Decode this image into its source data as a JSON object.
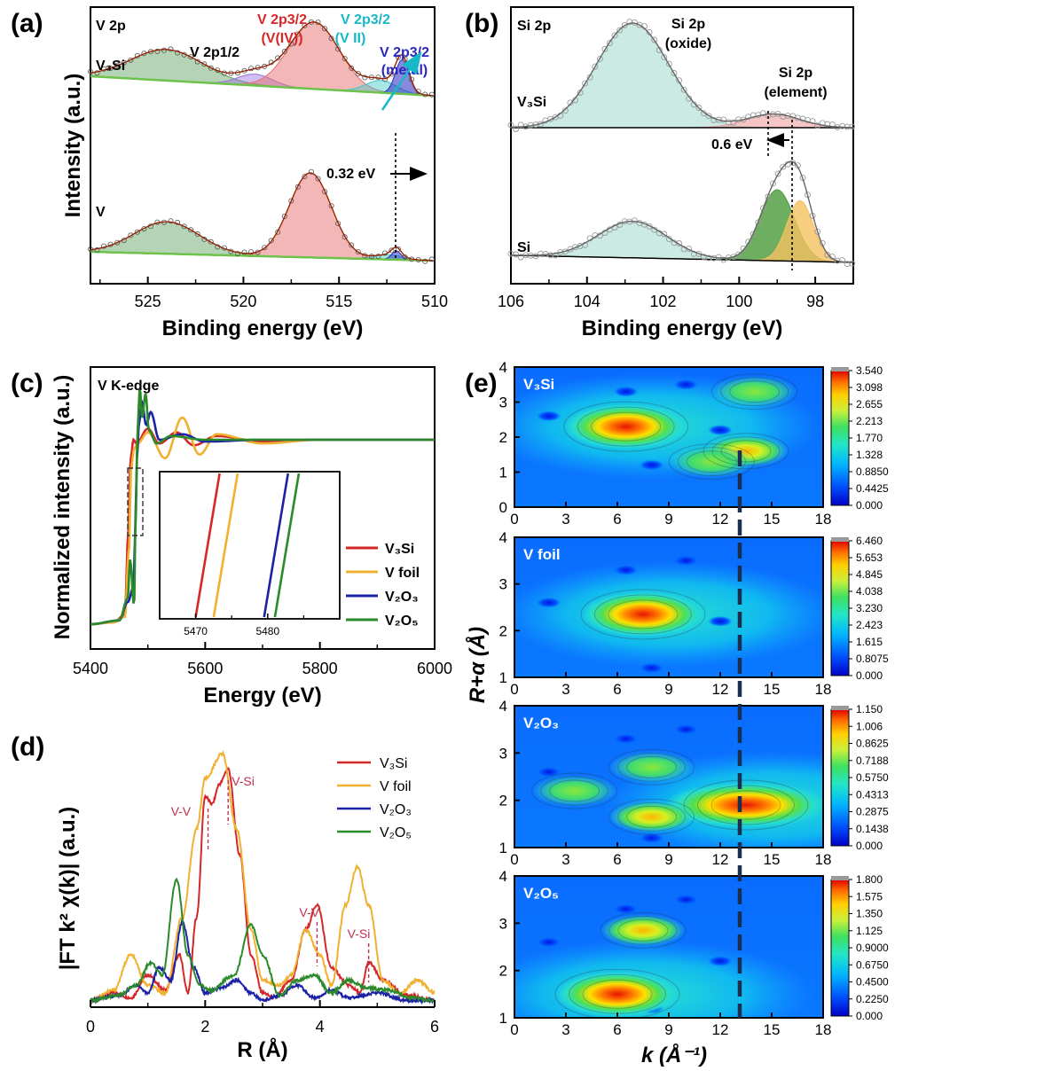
{
  "panels": {
    "a": {
      "label": "(a)",
      "title": "V 2p",
      "xlabel": "Binding energy (eV)",
      "ylabel": "Intensity (a.u.)",
      "sample_top": "V₃Si",
      "sample_bottom": "V",
      "peak_labels": {
        "v2p12": "V 2p1/2",
        "v4": "V 2p3/2",
        "v4_state": "(V(IV))",
        "v2": "V 2p3/2",
        "v2_state": "(V II)",
        "metal": "V 2p3/2",
        "metal_state": "(metal)"
      },
      "shift_label": "0.32 eV",
      "xticks": [
        "525",
        "520",
        "515",
        "510"
      ]
    },
    "b": {
      "label": "(b)",
      "title": "Si 2p",
      "xlabel": "Binding energy (eV)",
      "sample_top": "V₃Si",
      "sample_bottom": "Si",
      "oxide_label": "Si 2p",
      "oxide_state": "(oxide)",
      "element_label": "Si 2p",
      "element_state": "(element)",
      "shift_label": "0.6 eV",
      "xticks": [
        "106",
        "104",
        "102",
        "100",
        "98"
      ]
    },
    "c": {
      "label": "(c)",
      "title": "V K-edge",
      "xlabel": "Energy (eV)",
      "ylabel": "Normalized intensity (a.u.)",
      "xticks": [
        "5400",
        "5600",
        "5800",
        "6000"
      ],
      "inset_xticks": [
        "5470",
        "5480"
      ],
      "legend": [
        "V₃Si",
        "V foil",
        "V₂O₃",
        "V₂O₅"
      ]
    },
    "d": {
      "label": "(d)",
      "xlabel": "R (Å)",
      "ylabel": "|FT k² χ(k)| (a.u.)",
      "xticks": [
        "0",
        "2",
        "4",
        "6"
      ],
      "legend": [
        "V₃Si",
        "V foil",
        "V₂O₃",
        "V₂O₅"
      ],
      "annotations": [
        "V-V",
        "V-Si",
        "V-V",
        "V-Si"
      ]
    },
    "e": {
      "label": "(e)",
      "xlabel": "k (Å⁻¹)",
      "ylabel": "R+α (Å)",
      "xticks": [
        "0",
        "3",
        "6",
        "9",
        "12",
        "15",
        "18"
      ],
      "subplots": [
        {
          "name": "V₃Si",
          "yticks": [
            "0",
            "1",
            "2",
            "3",
            "4"
          ],
          "colorbar": [
            "3.540",
            "3.098",
            "2.655",
            "2.213",
            "1.770",
            "1.328",
            "0.8850",
            "0.4425",
            "0.000"
          ]
        },
        {
          "name": "V foil",
          "yticks": [
            "1",
            "2",
            "3",
            "4"
          ],
          "colorbar": [
            "6.460",
            "5.653",
            "4.845",
            "4.038",
            "3.230",
            "2.423",
            "1.615",
            "0.8075",
            "0.000"
          ]
        },
        {
          "name": "V₂O₃",
          "yticks": [
            "1",
            "2",
            "3",
            "4"
          ],
          "colorbar": [
            "1.150",
            "1.006",
            "0.8625",
            "0.7188",
            "0.5750",
            "0.4313",
            "0.2875",
            "0.1438",
            "0.000"
          ]
        },
        {
          "name": "V₂O₅",
          "yticks": [
            "1",
            "2",
            "3",
            "4"
          ],
          "colorbar": [
            "1.800",
            "1.575",
            "1.350",
            "1.125",
            "0.9000",
            "0.6750",
            "0.4500",
            "0.2250",
            "0.000"
          ]
        }
      ]
    }
  },
  "chart_data": [
    {
      "type": "line",
      "panel": "a",
      "title": "V 2p",
      "xlabel": "Binding energy (eV)",
      "ylabel": "Intensity (a.u.)",
      "xlim": [
        528,
        510
      ],
      "reversed_x": true,
      "y_units": "arbitrary (normalized)",
      "series": [
        {
          "name": "V₃Si",
          "x": [
            528,
            526,
            524,
            522,
            520,
            519,
            518,
            517,
            516.3,
            515,
            514,
            513,
            512.5,
            511.8,
            511,
            510
          ],
          "y": [
            0.18,
            0.38,
            0.55,
            0.4,
            0.3,
            0.33,
            0.56,
            0.92,
            1.0,
            0.7,
            0.35,
            0.25,
            0.3,
            0.52,
            0.15,
            0.02
          ]
        },
        {
          "name": "V",
          "x": [
            528,
            526,
            524,
            522,
            520,
            519,
            518,
            517,
            516.5,
            515,
            514,
            513,
            512,
            511,
            510
          ],
          "y": [
            0.1,
            0.35,
            0.5,
            0.32,
            0.18,
            0.15,
            0.38,
            0.88,
            1.0,
            0.6,
            0.2,
            0.06,
            0.1,
            0.04,
            0.02
          ]
        }
      ],
      "peaks": {
        "V2p1/2": 524.0,
        "V(IV)": 516.3,
        "V(II)": 512.8,
        "metal_V3Si": 511.7,
        "metal_V": 512.0
      },
      "shift_eV": 0.32
    },
    {
      "type": "line",
      "panel": "b",
      "title": "Si 2p",
      "xlabel": "Binding energy (eV)",
      "xlim": [
        106,
        97
      ],
      "reversed_x": true,
      "series": [
        {
          "name": "V₃Si",
          "x": [
            106,
            105,
            104,
            103.5,
            102.8,
            102,
            101,
            100,
            99.2,
            98.5,
            97
          ],
          "y": [
            0.02,
            0.12,
            0.55,
            0.85,
            1.0,
            0.75,
            0.22,
            0.08,
            0.15,
            0.06,
            0.03
          ]
        },
        {
          "name": "Si",
          "x": [
            106,
            105,
            104,
            103,
            102.5,
            102,
            101,
            100,
            99.3,
            98.7,
            98.5,
            98,
            97.5,
            97
          ],
          "y": [
            0.02,
            0.06,
            0.28,
            0.42,
            0.38,
            0.25,
            0.08,
            0.1,
            0.55,
            1.0,
            0.95,
            0.48,
            0.12,
            0.03
          ]
        }
      ],
      "peaks": {
        "oxide": 102.8,
        "element_V3Si": 99.2,
        "element_Si": 98.6
      },
      "shift_eV": 0.6
    },
    {
      "type": "line",
      "panel": "c",
      "title": "V K-edge",
      "xlabel": "Energy (eV)",
      "ylabel": "Normalized intensity (a.u.)",
      "xlim": [
        5400,
        6000
      ],
      "series": [
        {
          "name": "V₃Si",
          "x": [
            5400,
            5440,
            5460,
            5466,
            5470,
            5475,
            5480,
            5500,
            5520,
            5550,
            5580,
            5620,
            5700,
            5800,
            5900,
            6000
          ],
          "y": [
            0.0,
            0.01,
            0.05,
            0.5,
            0.9,
            1.0,
            0.98,
            1.06,
            0.98,
            1.04,
            0.97,
            1.02,
            0.99,
            1.0,
            1.0,
            1.0
          ]
        },
        {
          "name": "V foil",
          "x": [
            5400,
            5440,
            5460,
            5467,
            5471,
            5476,
            5482,
            5500,
            5530,
            5560,
            5590,
            5620,
            5700,
            5800,
            5900,
            6000
          ],
          "y": [
            0.0,
            0.01,
            0.04,
            0.4,
            0.85,
            0.95,
            0.98,
            1.04,
            0.9,
            1.12,
            0.92,
            1.03,
            0.98,
            1.0,
            1.0,
            1.0
          ]
        },
        {
          "name": "V₂O₃",
          "x": [
            5400,
            5450,
            5465,
            5475,
            5478,
            5481,
            5485,
            5490,
            5497,
            5505,
            5520,
            5560,
            5600,
            5700,
            5800,
            6000
          ],
          "y": [
            0.0,
            0.02,
            0.12,
            0.2,
            0.5,
            0.9,
            1.1,
            1.2,
            1.08,
            1.15,
            1.0,
            1.03,
            0.99,
            1.0,
            1.0,
            1.0
          ]
        },
        {
          "name": "V₂O₅",
          "x": [
            5400,
            5450,
            5465,
            5469,
            5476,
            5479,
            5482,
            5486,
            5490,
            5496,
            5502,
            5515,
            5540,
            5600,
            5700,
            6000
          ],
          "y": [
            0.0,
            0.02,
            0.14,
            0.35,
            0.1,
            0.6,
            1.05,
            1.28,
            1.12,
            1.25,
            1.05,
            0.98,
            1.02,
            1.0,
            1.0,
            1.0
          ]
        }
      ],
      "inset": {
        "xlim": [
          5465,
          5490
        ],
        "edge_crossings": {
          "V₃Si": 5470,
          "V foil": 5472.5,
          "V₂O₃": 5479.5,
          "V₂O₅": 5481
        }
      }
    },
    {
      "type": "line",
      "panel": "d",
      "xlabel": "R (Å)",
      "ylabel": "|FT k² χ(k)| (a.u.)",
      "xlim": [
        0,
        6
      ],
      "series": [
        {
          "name": "V₃Si",
          "x": [
            0,
            0.4,
            0.7,
            1.0,
            1.3,
            1.55,
            1.7,
            1.85,
            2.0,
            2.12,
            2.25,
            2.4,
            2.6,
            2.8,
            3.0,
            3.2,
            3.5,
            3.75,
            3.95,
            4.2,
            4.5,
            4.7,
            4.85,
            5.1,
            5.5,
            6.0
          ],
          "y": [
            0.02,
            0.05,
            0.03,
            0.12,
            0.06,
            0.2,
            0.05,
            0.35,
            0.83,
            0.8,
            0.88,
            0.94,
            0.6,
            0.2,
            0.05,
            0.03,
            0.1,
            0.3,
            0.4,
            0.15,
            0.08,
            0.05,
            0.17,
            0.1,
            0.04,
            0.02
          ]
        },
        {
          "name": "V foil",
          "x": [
            0,
            0.4,
            0.7,
            1.0,
            1.3,
            1.6,
            1.85,
            2.0,
            2.3,
            2.55,
            2.8,
            3.0,
            3.3,
            3.5,
            3.75,
            4.0,
            4.2,
            4.45,
            4.65,
            4.85,
            5.1,
            5.4,
            5.7,
            6.0
          ],
          "y": [
            0.02,
            0.06,
            0.2,
            0.08,
            0.05,
            0.35,
            0.7,
            0.9,
            1.0,
            0.7,
            0.3,
            0.1,
            0.08,
            0.12,
            0.3,
            0.2,
            0.08,
            0.4,
            0.55,
            0.4,
            0.1,
            0.05,
            0.1,
            0.05
          ]
        },
        {
          "name": "V₂O₃",
          "x": [
            0,
            0.5,
            0.8,
            1.0,
            1.2,
            1.4,
            1.6,
            1.8,
            2.0,
            2.3,
            2.55,
            2.8,
            3.0,
            3.3,
            3.6,
            3.9,
            4.2,
            4.5,
            5.0,
            5.5,
            6.0
          ],
          "y": [
            0.02,
            0.04,
            0.08,
            0.05,
            0.15,
            0.1,
            0.33,
            0.15,
            0.05,
            0.07,
            0.1,
            0.05,
            0.02,
            0.04,
            0.08,
            0.03,
            0.06,
            0.03,
            0.05,
            0.02,
            0.02
          ]
        },
        {
          "name": "V₂O₅",
          "x": [
            0,
            0.5,
            0.8,
            1.05,
            1.25,
            1.5,
            1.7,
            1.9,
            2.1,
            2.5,
            2.8,
            3.0,
            3.3,
            3.6,
            3.9,
            4.2,
            4.5,
            4.8,
            5.2,
            5.6,
            6.0
          ],
          "y": [
            0.02,
            0.04,
            0.08,
            0.17,
            0.12,
            0.5,
            0.2,
            0.08,
            0.06,
            0.12,
            0.32,
            0.2,
            0.04,
            0.1,
            0.12,
            0.05,
            0.1,
            0.07,
            0.06,
            0.03,
            0.02
          ]
        }
      ],
      "annotations": [
        {
          "text": "V-V",
          "x": 2.05
        },
        {
          "text": "V-Si",
          "x": 2.4
        },
        {
          "text": "V-V",
          "x": 3.95
        },
        {
          "text": "V-Si",
          "x": 4.85
        }
      ]
    },
    {
      "type": "heatmap",
      "panel": "e",
      "xlabel": "k (Å⁻¹)",
      "ylabel": "R+α (Å)",
      "xlim": [
        0,
        18
      ],
      "colormap": "jet",
      "dashed_line_k": 13.2,
      "maps": [
        {
          "name": "V₃Si",
          "ylim": [
            0,
            4
          ],
          "zlim": [
            0,
            3.54
          ],
          "maxima": [
            {
              "k": 6.5,
              "R": 2.3,
              "z": 3.54
            },
            {
              "k": 13.5,
              "R": 1.6,
              "z": 2.5
            },
            {
              "k": 11.5,
              "R": 1.3,
              "z": 2.0
            },
            {
              "k": 14,
              "R": 3.3,
              "z": 1.9
            }
          ]
        },
        {
          "name": "V foil",
          "ylim": [
            1,
            4
          ],
          "zlim": [
            0,
            6.46
          ],
          "maxima": [
            {
              "k": 7.5,
              "R": 2.35,
              "z": 6.46
            }
          ]
        },
        {
          "name": "V₂O₃",
          "ylim": [
            1,
            4
          ],
          "zlim": [
            0,
            1.15
          ],
          "maxima": [
            {
              "k": 13.5,
              "R": 1.9,
              "z": 1.15
            },
            {
              "k": 8,
              "R": 1.65,
              "z": 1.0
            },
            {
              "k": 8,
              "R": 2.7,
              "z": 0.6
            },
            {
              "k": 3.5,
              "R": 2.2,
              "z": 0.55
            }
          ]
        },
        {
          "name": "V₂O₅",
          "ylim": [
            1,
            4
          ],
          "zlim": [
            0,
            1.8
          ],
          "maxima": [
            {
              "k": 6,
              "R": 1.5,
              "z": 1.8
            },
            {
              "k": 7.5,
              "R": 2.85,
              "z": 1.1
            }
          ]
        }
      ]
    }
  ],
  "colors": {
    "V3Si": "#d62728",
    "Vfoil": "#f0b030",
    "V2O3": "#1c22a6",
    "V2O5": "#2a8a2a",
    "annotation": "#c03050",
    "cyan_label": "#18b8c8",
    "metal_label": "#2828c0",
    "fit_green": "#6cc24a"
  }
}
